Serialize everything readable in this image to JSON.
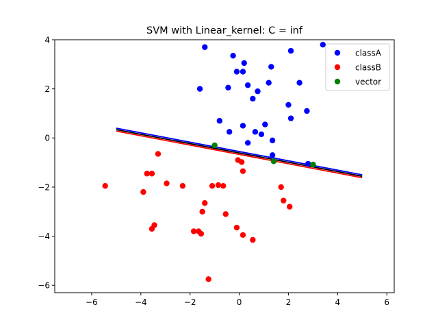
{
  "chart_data": {
    "type": "scatter",
    "title": "SVM with Linear_kernel: C = inf",
    "xlabel": "",
    "ylabel": "",
    "xlim": [
      -7.5,
      6.3
    ],
    "ylim": [
      -6.3,
      4.0
    ],
    "xticks": [
      -6,
      -4,
      -2,
      0,
      2,
      4,
      6
    ],
    "yticks": [
      -6,
      -4,
      -2,
      0,
      2,
      4
    ],
    "grid": false,
    "legend_position": "upper right",
    "series": [
      {
        "name": "classA",
        "color": "#0000ff",
        "points": [
          [
            -1.4,
            3.7
          ],
          [
            3.4,
            3.8
          ],
          [
            -0.25,
            3.35
          ],
          [
            2.1,
            3.55
          ],
          [
            0.2,
            3.05
          ],
          [
            -0.1,
            2.7
          ],
          [
            0.15,
            2.7
          ],
          [
            1.3,
            2.9
          ],
          [
            -1.6,
            2.0
          ],
          [
            -0.45,
            2.05
          ],
          [
            0.35,
            2.15
          ],
          [
            1.2,
            2.25
          ],
          [
            2.45,
            2.25
          ],
          [
            0.75,
            1.9
          ],
          [
            0.55,
            1.6
          ],
          [
            2.0,
            1.35
          ],
          [
            2.75,
            1.1
          ],
          [
            -0.8,
            0.7
          ],
          [
            2.1,
            0.8
          ],
          [
            0.15,
            0.5
          ],
          [
            1.05,
            0.55
          ],
          [
            -0.4,
            0.25
          ],
          [
            0.65,
            0.25
          ],
          [
            0.9,
            0.15
          ],
          [
            0.35,
            -0.2
          ],
          [
            1.35,
            -0.1
          ],
          [
            1.35,
            -0.7
          ],
          [
            2.8,
            -1.05
          ]
        ]
      },
      {
        "name": "classB",
        "color": "#ff0000",
        "points": [
          [
            -3.3,
            -0.65
          ],
          [
            -0.05,
            -0.9
          ],
          [
            0.1,
            -0.98
          ],
          [
            0.15,
            -1.35
          ],
          [
            -3.75,
            -1.45
          ],
          [
            -3.55,
            -1.45
          ],
          [
            -2.95,
            -1.85
          ],
          [
            -5.45,
            -1.95
          ],
          [
            -2.3,
            -1.95
          ],
          [
            -1.1,
            -1.95
          ],
          [
            -0.85,
            -1.92
          ],
          [
            -0.65,
            -1.95
          ],
          [
            1.7,
            -2.0
          ],
          [
            -3.9,
            -2.2
          ],
          [
            1.8,
            -2.55
          ],
          [
            -1.4,
            -2.65
          ],
          [
            2.05,
            -2.8
          ],
          [
            -1.5,
            -3.0
          ],
          [
            -0.55,
            -3.1
          ],
          [
            -3.45,
            -3.55
          ],
          [
            -3.55,
            -3.7
          ],
          [
            -0.1,
            -3.65
          ],
          [
            -1.85,
            -3.8
          ],
          [
            -1.65,
            -3.8
          ],
          [
            -1.55,
            -3.9
          ],
          [
            0.15,
            -3.95
          ],
          [
            0.55,
            -4.15
          ],
          [
            -1.25,
            -5.75
          ]
        ]
      },
      {
        "name": "vector",
        "color": "#008000",
        "points": [
          [
            -1.0,
            -0.3
          ],
          [
            1.4,
            -0.95
          ],
          [
            3.0,
            -1.08
          ]
        ]
      }
    ],
    "lines": [
      {
        "color": "#0000ff",
        "x": [
          -5.0,
          5.0
        ],
        "y": [
          0.4,
          -1.5
        ]
      },
      {
        "color": "#ff0000",
        "x": [
          -5.0,
          5.0
        ],
        "y": [
          0.28,
          -1.62
        ]
      },
      {
        "color": "#000000",
        "x": [
          -5.0,
          5.0
        ],
        "y": [
          0.34,
          -1.56
        ]
      }
    ]
  }
}
